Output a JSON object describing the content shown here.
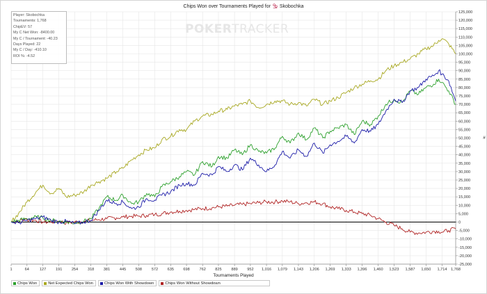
{
  "title_parts": {
    "before": "Chips Won over Tournaments Played for",
    "player": "Skobochka"
  },
  "info_panel": [
    "Player: Skobochka",
    "Tournaments: 1,768",
    "ChipEV: 57",
    "My C Net Won: -8400.00",
    "My C / Tournament: -40.23",
    "Days Played: 22",
    "My C / Day: -410.10",
    "ROI %: -4.52"
  ],
  "watermark": {
    "left": "POKER",
    "right": "TRACKER"
  },
  "colors": {
    "chips_won": "#2ea12e",
    "net_expected": "#a8a821",
    "with_showdown": "#1c1ca8",
    "without_showdown": "#b02424",
    "zero_line": "#000000",
    "grid": "#e6e6e6"
  },
  "legend": [
    {
      "label": "Chips Won",
      "color": "#2ea12e"
    },
    {
      "label": "Net Expected Chips Won",
      "color": "#a8a821"
    },
    {
      "label": "Chips Won With Showdown",
      "color": "#1c1ca8"
    },
    {
      "label": "Chips Won Without Showdown",
      "color": "#b02424"
    }
  ],
  "chart_data": {
    "type": "line",
    "title": "Chips Won over Tournaments Played for Skobochka",
    "xlabel": "Tournaments Played",
    "ylabel": "#",
    "xlim": [
      1,
      1768
    ],
    "ylim": [
      -25000,
      125000
    ],
    "x_ticks": [
      "1",
      "64",
      "127",
      "191",
      "254",
      "318",
      "381",
      "445",
      "508",
      "572",
      "635",
      "698",
      "762",
      "825",
      "889",
      "952",
      "1,016",
      "1,079",
      "1,143",
      "1,206",
      "1,269",
      "1,333",
      "1,396",
      "1,460",
      "1,523",
      "1,587",
      "1,650",
      "1,714",
      "1,768"
    ],
    "y_ticks": [
      "-25,000",
      "-20,000",
      "-15,000",
      "-10,000",
      "-5,000",
      "0",
      "5,000",
      "10,000",
      "15,000",
      "20,000",
      "25,000",
      "30,000",
      "35,000",
      "40,000",
      "45,000",
      "50,000",
      "55,000",
      "60,000",
      "65,000",
      "70,000",
      "75,000",
      "80,000",
      "85,000",
      "90,000",
      "95,000",
      "100,000",
      "105,000",
      "110,000",
      "115,000",
      "120,000",
      "125,000"
    ],
    "grid": true,
    "legend_position": "bottom",
    "series": [
      {
        "name": "Chips Won",
        "color": "#2ea12e",
        "x": [
          1,
          30,
          64,
          100,
          127,
          160,
          191,
          220,
          254,
          290,
          318,
          350,
          381,
          420,
          445,
          480,
          508,
          540,
          572,
          600,
          635,
          670,
          698,
          730,
          762,
          800,
          825,
          860,
          889,
          920,
          952,
          985,
          1016,
          1050,
          1079,
          1110,
          1143,
          1175,
          1206,
          1240,
          1269,
          1300,
          1333,
          1365,
          1396,
          1430,
          1460,
          1490,
          1523,
          1555,
          1587,
          1620,
          1650,
          1680,
          1700,
          1714,
          1740,
          1768
        ],
        "y": [
          0,
          1000,
          2000,
          3000,
          2500,
          1000,
          500,
          0,
          -500,
          500,
          2000,
          8000,
          15000,
          13000,
          16000,
          11000,
          12000,
          17000,
          15000,
          21000,
          24000,
          27000,
          30000,
          28000,
          36000,
          33000,
          39000,
          38000,
          43000,
          40000,
          46000,
          42000,
          41000,
          44000,
          51000,
          47000,
          53000,
          49000,
          56000,
          50000,
          54000,
          56000,
          58000,
          52000,
          60000,
          58000,
          63000,
          70000,
          73000,
          71000,
          78000,
          76000,
          80000,
          82000,
          85000,
          83000,
          78000,
          70000
        ]
      },
      {
        "name": "Net Expected Chips Won",
        "color": "#a8a821",
        "x": [
          1,
          30,
          64,
          100,
          127,
          160,
          191,
          220,
          254,
          290,
          318,
          350,
          381,
          420,
          445,
          480,
          508,
          540,
          572,
          600,
          635,
          670,
          698,
          730,
          762,
          800,
          825,
          860,
          889,
          920,
          952,
          985,
          1016,
          1050,
          1079,
          1110,
          1143,
          1175,
          1206,
          1240,
          1269,
          1300,
          1333,
          1365,
          1396,
          1430,
          1460,
          1490,
          1523,
          1555,
          1587,
          1620,
          1650,
          1680,
          1700,
          1714,
          1740,
          1768
        ],
        "y": [
          0,
          5000,
          12000,
          18000,
          22000,
          17000,
          20000,
          15000,
          16000,
          18000,
          22000,
          24000,
          26000,
          30000,
          32000,
          37000,
          40000,
          43000,
          44000,
          49000,
          51000,
          55000,
          55000,
          60000,
          63000,
          64000,
          66000,
          67000,
          69000,
          70000,
          72000,
          68000,
          70000,
          72000,
          72000,
          70000,
          71000,
          69000,
          73000,
          70000,
          72000,
          74000,
          77000,
          80000,
          82000,
          84000,
          85000,
          90000,
          93000,
          95000,
          97000,
          100000,
          103000,
          105000,
          108000,
          109000,
          106000,
          100000
        ]
      },
      {
        "name": "Chips Won With Showdown",
        "color": "#1c1ca8",
        "x": [
          1,
          30,
          64,
          100,
          127,
          160,
          191,
          220,
          254,
          290,
          318,
          350,
          381,
          420,
          445,
          480,
          508,
          540,
          572,
          600,
          635,
          670,
          698,
          730,
          762,
          800,
          825,
          860,
          889,
          920,
          952,
          985,
          1016,
          1050,
          1079,
          1110,
          1143,
          1175,
          1206,
          1240,
          1269,
          1300,
          1333,
          1365,
          1396,
          1430,
          1460,
          1490,
          1523,
          1555,
          1587,
          1620,
          1650,
          1680,
          1700,
          1714,
          1740,
          1768
        ],
        "y": [
          0,
          -500,
          1000,
          2000,
          3000,
          1000,
          0,
          500,
          -1000,
          0,
          1000,
          7000,
          13000,
          11000,
          12000,
          8000,
          9000,
          14000,
          13000,
          16000,
          18000,
          22000,
          23000,
          22000,
          29000,
          28000,
          33000,
          30000,
          34000,
          31000,
          38000,
          34000,
          30000,
          34000,
          42000,
          38000,
          43000,
          39000,
          47000,
          41000,
          46000,
          48000,
          51000,
          47000,
          55000,
          54000,
          58000,
          66000,
          73000,
          71000,
          78000,
          80000,
          85000,
          87000,
          90000,
          88000,
          84000,
          72000
        ]
      },
      {
        "name": "Chips Won Without Showdown",
        "color": "#b02424",
        "x": [
          1,
          30,
          64,
          100,
          127,
          160,
          191,
          220,
          254,
          290,
          318,
          350,
          381,
          420,
          445,
          480,
          508,
          540,
          572,
          600,
          635,
          670,
          698,
          730,
          762,
          800,
          825,
          860,
          889,
          920,
          952,
          985,
          1016,
          1050,
          1079,
          1110,
          1143,
          1175,
          1206,
          1240,
          1269,
          1300,
          1333,
          1365,
          1396,
          1430,
          1460,
          1490,
          1523,
          1555,
          1587,
          1620,
          1650,
          1680,
          1700,
          1714,
          1740,
          1768
        ],
        "y": [
          0,
          1000,
          1500,
          1000,
          0,
          0,
          500,
          -500,
          0,
          500,
          1000,
          1500,
          2000,
          2500,
          3000,
          3500,
          3500,
          4000,
          4500,
          5000,
          6000,
          6500,
          7000,
          7500,
          8000,
          8500,
          9000,
          9500,
          10000,
          10500,
          11000,
          11500,
          12000,
          12000,
          12500,
          12000,
          11000,
          11500,
          12000,
          11000,
          9000,
          8000,
          7000,
          6000,
          5000,
          4000,
          2000,
          0,
          -2000,
          -4000,
          -6000,
          -6500,
          -6000,
          -5500,
          -5500,
          -6000,
          -5000,
          -4000
        ]
      }
    ]
  }
}
